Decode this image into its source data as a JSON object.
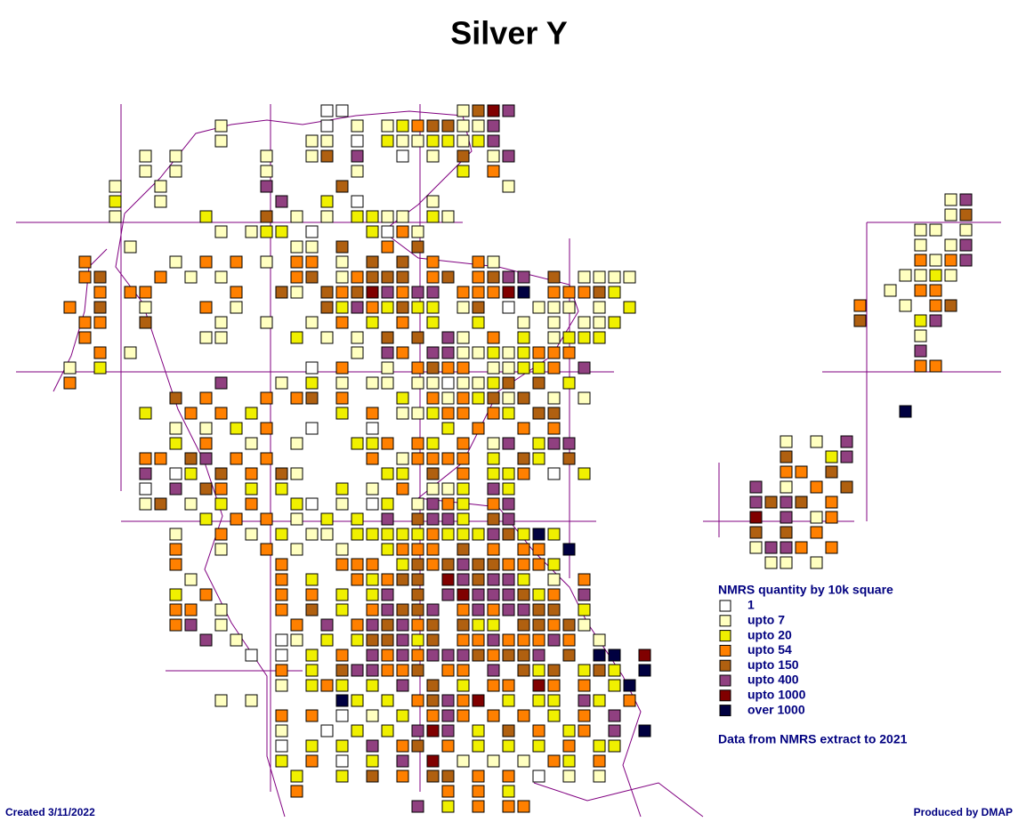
{
  "title": "Silver Y",
  "legend": {
    "title": "NMRS quantity by 10k square",
    "classes": [
      {
        "label": "1",
        "color": "#ffffff"
      },
      {
        "label": "upto 7",
        "color": "#ffffc0"
      },
      {
        "label": "upto 20",
        "color": "#f0f000"
      },
      {
        "label": "upto 54",
        "color": "#ff8000"
      },
      {
        "label": "upto 150",
        "color": "#b06010"
      },
      {
        "label": "upto 400",
        "color": "#904080"
      },
      {
        "label": "upto 1000",
        "color": "#800000"
      },
      {
        "label": "over 1000",
        "color": "#000040"
      }
    ]
  },
  "source_note": "Data from NMRS extract to 2021",
  "created": "Created 3/11/2022",
  "produced": "Produced by DMAP",
  "grids": [
    {
      "rows": [
        "..................00.......1465.........",
        "...........1......0.1.12344115..........",
        "...........1.....11.0.21122125..........",
        "......1.1.....1..14.5..0.1.4.15.........",
        "......1.1.....1.....1......2.3..........",
        "....1..1......5....4..........1.........",
        "....2..1.......5..2.0....1..............",
        "....1.....2...4.1.1.2211.21.............",
        "...........1.122.0...2031...............",
        ".....1..........11.4..3.4...............",
        "..3.....1.3.3.1.33.1.4.4.3..31..........",
        "..34...3.1.1....34.13444.34.3455.4.1111.",
        "...3.33.....3..41.43465355.33367.33342..",
        ".3.4..1...3.1.....42532422.14.0.111.1.2.",
        "..33..4....1..1..1.3.2.3.2..2..1.1.112..",
        "..3.......11....2.1.1.4.4.51.3.2.1222...",
        "...3.1..............1.53.5511212333.....",
        ".1.2.............0.3..1.3433.11223.5....",
        ".3.........5...1.2.1.11.1101124.4.2.....",
        "........4.3...3.34.3...2.3132414.1.1....",
        "......2..3.3.2.....2.3.11233.32.44......",
        "........1.1.2.3..0...0....2.3..3.3......",
        "........2.3..1..1...223.32.3.15.255.....",
        "......33.45.3.3......3.13333.2.42.4.....",
        "......5.02.4.3.41.....22.4.3.223.0.2....",
        "......0.5.43.2.2...2.1.3.112.52.........",
        "......14.1.2.3..20.1.02.1532.35.........",
        "..........2.3.3.1.2.2.5.4552.45.........",
        "........1..3.1.2.11.22222322254272......",
        "........3..1..3.1..1..2333.4.3.33.7.....",
        "........3......3...333.24345443332......",
        ".........1.....3.2..32344.654552.1.3....",
        "........2.3....3.3.2.25.4.56555423.5....",
        "........33.1...3.4.2.35445.3535544.2....",
        "........35.1....3.5.354534.422.44341....",
        "..........5.1..01.2.244524.33533353.1...",
        ".............0.0.2.3.535355543445.4.77.6",
        "...............3.2.455334.33.5.424.242.7",
        "...............1.232.2.5.4.2.33.63.3.27.",
        "...........1.1.....72.2.34536.2.22.52.3.",
        "...............3.3.0.1.2.353.3.3.2.3.5..",
        "...............1..0.2.2.565.2.4.3.23.5.7",
        "...............0.2.2.5.34.3.2.2.2.3.22..",
        "...............2.3.0.2.5.6.1.1.1.32.3...",
        "................2..2.4.3.44.3.3.0.1.1...",
        "................3.........3.3.2.........",
        "........................5.2.3.33........"
      ]
    },
    {
      "rows": [
        "......15",
        "......14",
        "....11.1",
        "....1.15",
        "....3135",
        "...1121.",
        "..1.33..",
        "3..1.34.",
        "4...25..",
        "....1...",
        "....5...",
        "....33..",
        "........",
        "........",
        "...7...."
      ]
    },
    {
      "rows": [
        "..1.1.5",
        "..4..25",
        "..33.4.",
        "5.1.3.4",
        "5454.3.",
        "6.5.13.",
        "4.4.3..",
        "1553.3.",
        ".11.1.."
      ]
    }
  ]
}
